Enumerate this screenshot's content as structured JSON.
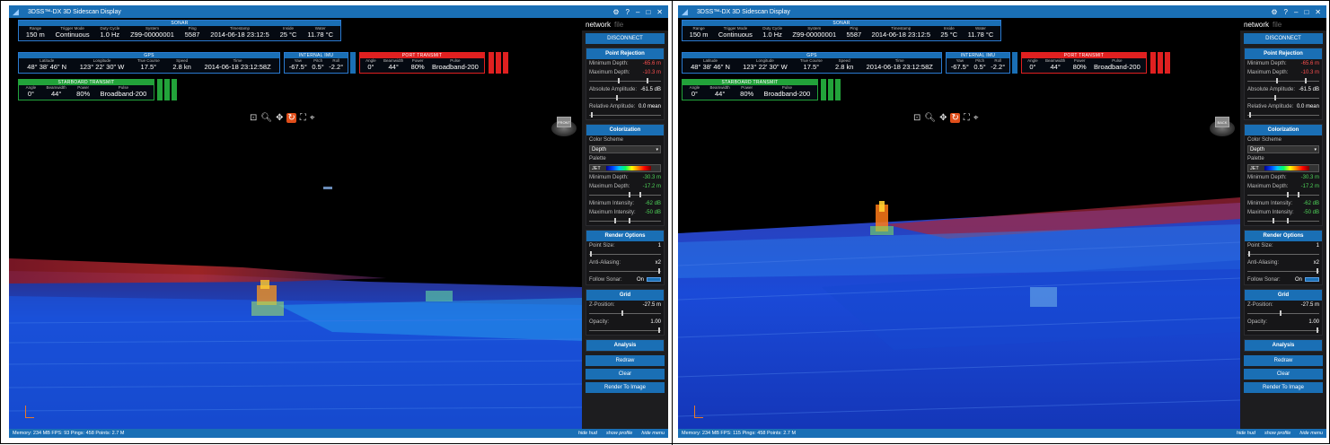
{
  "app": {
    "title": "3DSS™-DX  3D Sidescan Display",
    "window_buttons": [
      "⚙",
      "?",
      "–",
      "□",
      "✕"
    ]
  },
  "hud": {
    "sonar": {
      "header": "SONAR",
      "fields": [
        {
          "label": "Range",
          "value": "150 m"
        },
        {
          "label": "Trigger Mode",
          "value": "Continuous"
        },
        {
          "label": "Duty Cycle",
          "value": "1.0 Hz"
        },
        {
          "label": "System",
          "value": "Z99-00000001"
        },
        {
          "label": "Ping",
          "value": "5587"
        },
        {
          "label": "Timestamp",
          "value": "2014-06-18 23:12:5"
        },
        {
          "label": "Inside",
          "value": "25 °C"
        },
        {
          "label": "Water",
          "value": "11.78 °C"
        }
      ]
    },
    "gps": {
      "header": "GPS",
      "fields": [
        {
          "label": "Latitude",
          "value": "48° 38' 46\" N"
        },
        {
          "label": "Longitude",
          "value": "123° 22' 30\" W"
        },
        {
          "label": "True Course",
          "value": "17.5°"
        },
        {
          "label": "Speed",
          "value": "2.8 kn"
        },
        {
          "label": "Time",
          "value": "2014-06-18 23:12:58Z"
        }
      ]
    },
    "imu": {
      "header": "INTERNAL IMU",
      "fields": [
        {
          "label": "Yaw",
          "value": "-67.5°"
        },
        {
          "label": "Pitch",
          "value": "0.5°"
        },
        {
          "label": "Roll",
          "value": "-2.2°"
        }
      ]
    },
    "port": {
      "header": "PORT TRANSMIT",
      "fields": [
        {
          "label": "Angle",
          "value": "0°"
        },
        {
          "label": "Beamwidth",
          "value": "44°"
        },
        {
          "label": "Power",
          "value": "80%"
        },
        {
          "label": "Pulse",
          "value": "Broadband-200"
        }
      ]
    },
    "starboard": {
      "header": "STARBOARD TRANSMIT",
      "fields": [
        {
          "label": "Angle",
          "value": "0°"
        },
        {
          "label": "Beamwidth",
          "value": "44°"
        },
        {
          "label": "Power",
          "value": "80%"
        },
        {
          "label": "Pulse",
          "value": "Broadband-200"
        }
      ]
    }
  },
  "viewcube": {
    "left_label": "FRONT",
    "right_label": "BACK"
  },
  "sidebar": {
    "tabs": [
      "network",
      "file"
    ],
    "disconnect": "DISCONNECT",
    "point_rejection": {
      "header": "Point Rejection",
      "min_depth_label": "Minimum Depth:",
      "min_depth": "-65.6 m",
      "max_depth_label": "Maximum Depth:",
      "max_depth": "-10.3 m",
      "abs_amp_label": "Absolute Amplitude:",
      "abs_amp": "-61.5 dB",
      "rel_amp_label": "Relative Amplitude:",
      "rel_amp": "0.0 mean"
    },
    "colorization": {
      "header": "Colorization",
      "scheme_label": "Color Scheme",
      "scheme_value": "Depth",
      "palette_label": "Palette",
      "palette_value": "JET",
      "min_depth_label": "Minimum Depth:",
      "min_depth": "-30.3 m",
      "max_depth_label": "Maximum Depth:",
      "max_depth": "-17.2 m",
      "min_int_label": "Minimum Intensity:",
      "min_int": "-62 dB",
      "max_int_label": "Maximum Intensity:",
      "max_int": "-50 dB"
    },
    "render": {
      "header": "Render Options",
      "point_size_label": "Point Size:",
      "point_size": "1",
      "aa_label": "Anti-Aliasing:",
      "aa": "x2",
      "follow_label": "Follow Sonar:",
      "follow": "On"
    },
    "grid": {
      "header": "Grid",
      "z_label": "Z-Position:",
      "z": "-27.5 m",
      "opacity_label": "Opacity:",
      "opacity": "1.00"
    },
    "analysis": "Analysis",
    "redraw": "Redraw",
    "clear": "Clear",
    "render_image": "Render To Image"
  },
  "status": {
    "left_stats": "Memory: 234 MB  FPS: 93  Pings: 458  Points: 2.7 M",
    "right_stats": "Memory: 234 MB  FPS: 115  Pings: 458  Points: 2.7 M",
    "links": [
      "hide hud",
      "show profile",
      "hide menu"
    ]
  }
}
